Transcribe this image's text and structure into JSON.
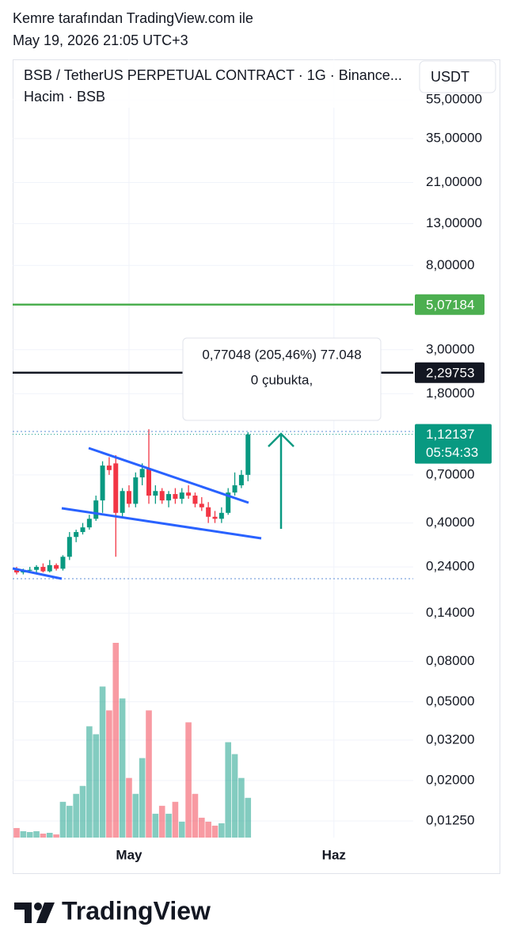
{
  "header": {
    "author": "Kemre tarafından TradingView.com ile",
    "timestamp": "May 19, 2026 21:05 UTC+3"
  },
  "chart_data": {
    "type": "candlestick",
    "title": "BSB / TetherUS PERPETUAL CONTRACT · 1G · Binance...",
    "volume_label": "Hacim · BSB",
    "currency": "USDT",
    "log_scale": true,
    "grid": true,
    "up_color": "#089981",
    "down_color": "#f23645",
    "x": [
      0,
      1,
      2,
      3,
      4,
      5,
      6,
      7,
      8,
      9,
      10,
      11,
      12,
      13,
      14,
      15,
      16,
      17,
      18,
      19,
      20,
      21,
      22,
      23,
      24,
      25,
      26,
      27,
      28,
      29,
      30,
      31,
      32,
      33,
      34,
      35
    ],
    "xlim": [
      -0.6,
      60
    ],
    "xticks": [
      {
        "value": 17,
        "label": "May"
      },
      {
        "value": 48,
        "label": "Haz"
      }
    ],
    "open": [
      0.235,
      0.225,
      0.23,
      0.232,
      0.24,
      0.228,
      0.245,
      0.235,
      0.27,
      0.34,
      0.36,
      0.38,
      0.42,
      0.52,
      0.78,
      0.8,
      0.45,
      0.58,
      0.5,
      0.68,
      0.75,
      0.55,
      0.58,
      0.52,
      0.56,
      0.53,
      0.57,
      0.55,
      0.5,
      0.48,
      0.43,
      0.42,
      0.45,
      0.57,
      0.62,
      0.7
    ],
    "high": [
      0.24,
      0.235,
      0.24,
      0.245,
      0.25,
      0.26,
      0.25,
      0.275,
      0.36,
      0.37,
      0.4,
      0.44,
      0.55,
      0.82,
      0.86,
      0.88,
      0.6,
      0.62,
      0.72,
      0.8,
      1.19,
      0.62,
      0.6,
      0.58,
      0.6,
      0.6,
      0.62,
      0.57,
      0.54,
      0.51,
      0.46,
      0.48,
      0.6,
      0.72,
      0.74,
      1.15
    ],
    "low": [
      0.22,
      0.22,
      0.225,
      0.225,
      0.225,
      0.225,
      0.23,
      0.23,
      0.26,
      0.32,
      0.35,
      0.37,
      0.41,
      0.45,
      0.7,
      0.27,
      0.43,
      0.48,
      0.48,
      0.62,
      0.5,
      0.5,
      0.5,
      0.48,
      0.5,
      0.5,
      0.53,
      0.48,
      0.46,
      0.4,
      0.4,
      0.4,
      0.44,
      0.55,
      0.6,
      0.65
    ],
    "close": [
      0.225,
      0.23,
      0.232,
      0.24,
      0.228,
      0.245,
      0.235,
      0.27,
      0.34,
      0.36,
      0.38,
      0.42,
      0.52,
      0.78,
      0.74,
      0.45,
      0.58,
      0.5,
      0.68,
      0.75,
      0.55,
      0.58,
      0.52,
      0.56,
      0.53,
      0.57,
      0.55,
      0.5,
      0.48,
      0.43,
      0.42,
      0.45,
      0.57,
      0.62,
      0.7,
      1.12137
    ],
    "volume": [
      12,
      8,
      7,
      8,
      5,
      6,
      4,
      45,
      40,
      55,
      65,
      140,
      130,
      190,
      160,
      245,
      175,
      75,
      55,
      100,
      160,
      30,
      40,
      30,
      45,
      20,
      145,
      55,
      25,
      20,
      15,
      18,
      120,
      105,
      75,
      50
    ],
    "ylim": [
      0.0103,
      87.9
    ],
    "yticks": [
      {
        "value": 55,
        "label": "55,00000"
      },
      {
        "value": 35,
        "label": "35,00000"
      },
      {
        "value": 21,
        "label": "21,00000"
      },
      {
        "value": 13,
        "label": "13,00000"
      },
      {
        "value": 8,
        "label": "8,00000"
      },
      {
        "value": 3,
        "label": "3,00000"
      },
      {
        "value": 1.8,
        "label": "1,80000"
      },
      {
        "value": 0.7,
        "label": "0,70000"
      },
      {
        "value": 0.4,
        "label": "0,40000"
      },
      {
        "value": 0.24,
        "label": "0,24000"
      },
      {
        "value": 0.14,
        "label": "0,14000"
      },
      {
        "value": 0.08,
        "label": "0,08000"
      },
      {
        "value": 0.05,
        "label": "0,05000"
      },
      {
        "value": 0.032,
        "label": "0,03200"
      },
      {
        "value": 0.02,
        "label": "0,02000"
      },
      {
        "value": 0.0125,
        "label": "0,01250"
      }
    ],
    "levels": [
      {
        "value": 5.07184,
        "label": "5,07184",
        "color": "#4caf50"
      },
      {
        "value": 2.29753,
        "label": "2,29753",
        "color": "#131722"
      }
    ],
    "last_price": {
      "value": 1.12137,
      "label": "1,12137",
      "countdown": "05:54:33",
      "color": "#089981"
    },
    "measure": {
      "line1": "0,77048 (205,46%) 77.048",
      "line2": "0 çubukta,"
    }
  },
  "footer": {
    "brand": "TradingView"
  }
}
